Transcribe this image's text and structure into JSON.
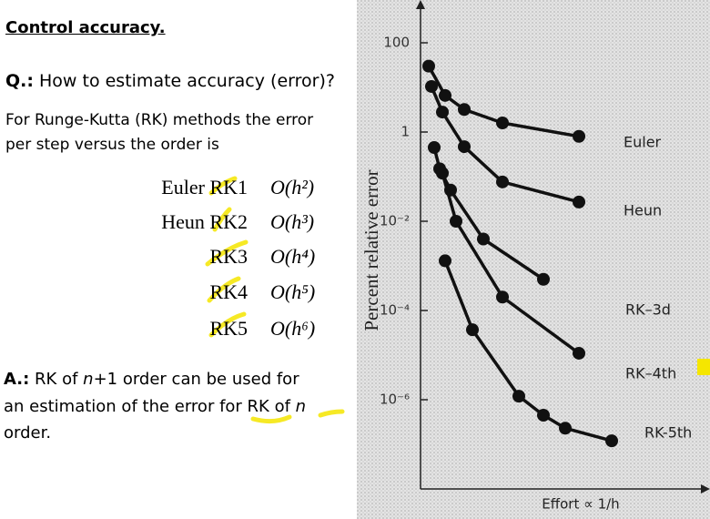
{
  "slide": {
    "heading": "Control accuracy.",
    "question": {
      "label": "Q.:",
      "text": "How to estimate accuracy (error)?"
    },
    "intro": [
      "For Runge-Kutta (RK) methods the error",
      "per step versus the order is"
    ],
    "methods": [
      {
        "name": "Euler RK1",
        "order": "O(h²)"
      },
      {
        "name": "Heun RK2",
        "order": "O(h³)"
      },
      {
        "name": "RK3",
        "order": "O(h⁴)"
      },
      {
        "name": "RK4",
        "order": "O(h⁵)"
      },
      {
        "name": "RK5",
        "order": "O(h⁶)"
      }
    ],
    "answer": {
      "label": "A.:",
      "parts": [
        "RK of ",
        "n",
        "+1 order can be used for",
        "an estimation of the error for RK of ",
        "n",
        "order."
      ]
    }
  },
  "chart_data": {
    "type": "line",
    "ylabel": "Percent relative error",
    "xlabel": "Effort ∝ 1/h",
    "log_y": true,
    "xlim": [
      0,
      10.3
    ],
    "ylim": [
      1e-08,
      1000
    ],
    "yticks": [
      100,
      1,
      {
        "value": 0.01,
        "label": "10⁻²"
      },
      {
        "value": 0.0001,
        "label": "10⁻⁴"
      },
      {
        "value": 1e-06,
        "label": "10⁻⁶"
      }
    ],
    "series": [
      {
        "name": "Euler",
        "color": "#111111",
        "x": [
          0.3,
          0.9,
          1.6,
          3.0,
          5.8
        ],
        "values": [
          30,
          6.6,
          3.2,
          1.6,
          0.8
        ]
      },
      {
        "name": "Heun",
        "color": "#111111",
        "x": [
          0.4,
          0.8,
          1.6,
          3.0,
          5.8
        ],
        "values": [
          10.5,
          2.8,
          0.47,
          0.076,
          0.027
        ]
      },
      {
        "name": "RK–3d",
        "color": "#111111",
        "x": [
          0.5,
          0.7,
          1.1,
          2.3,
          4.5
        ],
        "values": [
          0.45,
          0.15,
          0.05,
          0.004,
          0.0005
        ]
      },
      {
        "name": "RK–4th",
        "color": "#111111",
        "x": [
          0.8,
          1.3,
          3.0,
          5.8
        ],
        "values": [
          0.12,
          0.01,
          0.0002,
          1.1e-05
        ]
      },
      {
        "name": "RK-5th",
        "color": "#111111",
        "x": [
          0.9,
          1.9,
          3.6,
          4.5,
          5.3,
          7.0
        ],
        "values": [
          0.0013,
          3.7e-05,
          1.2e-06,
          4.5e-07,
          2.3e-07,
          1.2e-07
        ]
      }
    ]
  }
}
